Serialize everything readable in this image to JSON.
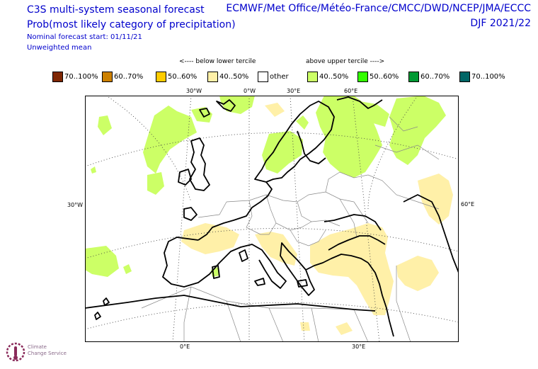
{
  "header": {
    "title_line1": "C3S multi-system seasonal forecast",
    "title_line2": "Prob(most likely category of precipitation)",
    "nominal_start": "Nominal forecast start: 01/11/21",
    "weighting": "Unweighted mean",
    "centres": "ECMWF/Met Office/Météo-France/CMCC/DWD/NCEP/JMA/ECCC",
    "season": "DJF 2021/22"
  },
  "legend": {
    "below_label": "<---- below lower tercile",
    "above_label": "above upper tercile ---->",
    "items": [
      {
        "label": "70..100%",
        "color": "#7f2704"
      },
      {
        "label": "60..70%",
        "color": "#cc8000"
      },
      {
        "label": "50..60%",
        "color": "#ffcc00"
      },
      {
        "label": "40..50%",
        "color": "#fff0a8"
      },
      {
        "label": "other",
        "color": "#ffffff"
      },
      {
        "label": "40..50%",
        "color": "#ccff66"
      },
      {
        "label": "50..60%",
        "color": "#33ff00"
      },
      {
        "label": "60..70%",
        "color": "#009933"
      },
      {
        "label": "70..100%",
        "color": "#006666"
      }
    ]
  },
  "map": {
    "top_ticks": [
      "30°W",
      "0°W",
      "30°E",
      "60°E"
    ],
    "bottom_ticks": [
      "0°E",
      "30°E"
    ],
    "left_tick": "30°W",
    "right_tick": "60°E"
  },
  "logo": {
    "text_line1": "Climate",
    "text_line2": "Change Service"
  }
}
